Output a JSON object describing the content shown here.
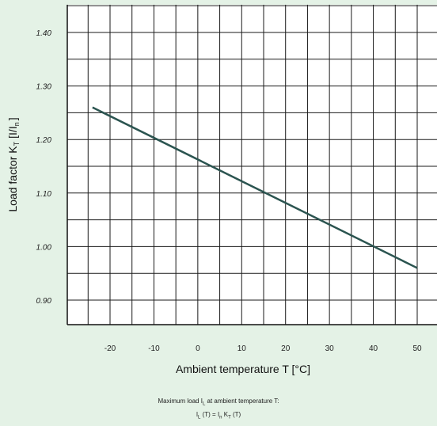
{
  "chart_data": {
    "type": "line",
    "x": [
      -24,
      50
    ],
    "series": [
      {
        "values": [
          1.26,
          0.96
        ]
      }
    ],
    "xlim": [
      -30,
      55
    ],
    "ylim": [
      0.85,
      1.45
    ],
    "x_ticks": [
      -20,
      -10,
      0,
      10,
      20,
      30,
      40,
      50
    ],
    "x_tick_labels": [
      "-20",
      "-10",
      "0",
      "10",
      "20",
      "30",
      "40",
      "50"
    ],
    "y_ticks": [
      0.9,
      1.0,
      1.1,
      1.2,
      1.3,
      1.4
    ],
    "y_tick_labels": [
      "0.90",
      "1.00",
      "1.10",
      "1.20",
      "1.30",
      "1.40"
    ],
    "xlabel": "Ambient temperature T [°C]",
    "ylabel": "Load factor K",
    "ylabel_subscript": "T",
    "ylabel_unit_prefix": "[I/I",
    "ylabel_unit_subscript": "n",
    "ylabel_unit_suffix": "]",
    "grid": true,
    "line_color": "#2b5450"
  },
  "footnote": {
    "line1_prefix": "Maximum load  I",
    "line1_sub": "L",
    "line1_suffix": "  at ambient temperature T:",
    "line2_a": "I",
    "line2_a_sub": "L",
    "line2_b": " (T) = I",
    "line2_b_sub": "n",
    "line2_c": "  K",
    "line2_c_sub": "T",
    "line2_d": " (T)"
  }
}
